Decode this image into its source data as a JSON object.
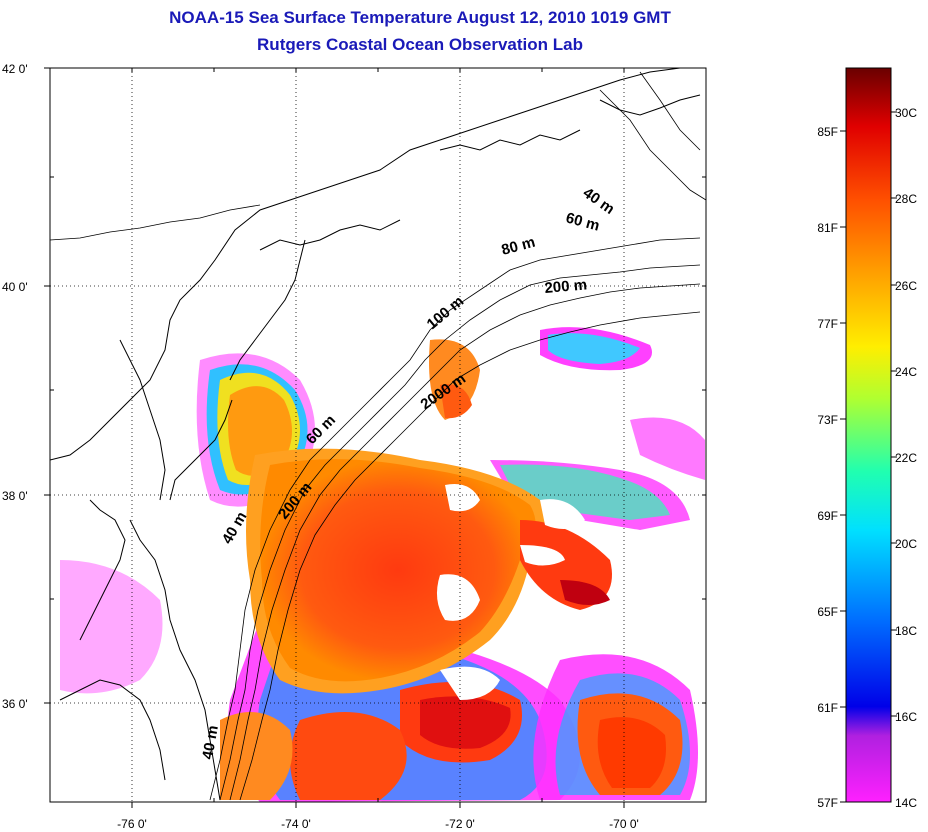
{
  "header": {
    "title": "NOAA-15 Sea Surface Temperature August 12, 2010 1019 GMT",
    "subtitle": "Rutgers Coastal Ocean Observation Lab"
  },
  "map": {
    "lat_ticks": [
      "42 0'",
      "40 0'",
      "38 0'",
      "36 0'"
    ],
    "lon_ticks": [
      "-76 0'",
      "-74 0'",
      "-72 0'",
      "-70 0'"
    ],
    "contour_labels": [
      "40 m",
      "60 m",
      "80 m",
      "200 m",
      "100 m",
      "2000 m",
      "60 m",
      "200 m",
      "40 m",
      "40 m"
    ]
  },
  "colorbar": {
    "fahrenheit": [
      "85F",
      "81F",
      "77F",
      "73F",
      "69F",
      "65F",
      "61F",
      "57F"
    ],
    "celsius": [
      "30C",
      "28C",
      "26C",
      "24C",
      "22C",
      "20C",
      "18C",
      "16C",
      "14C"
    ],
    "colors": [
      "#7a0000",
      "#d40000",
      "#ff3a00",
      "#ff8a00",
      "#ffe800",
      "#a8ff30",
      "#20ffb0",
      "#00d8ff",
      "#0080ff",
      "#0000e8",
      "#9020d0",
      "#ff20ff"
    ]
  },
  "colors": {
    "title": "#1a1ab8",
    "sst_warm": "#ff4a10",
    "land_line": "#000000"
  }
}
